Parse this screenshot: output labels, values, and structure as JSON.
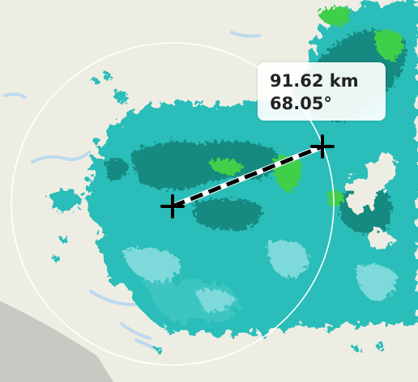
{
  "colors": {
    "land": "#eeede3",
    "land_lower_left": "#c7c7c1",
    "water": "#b9d8f0",
    "radar_teal": "#2cbdb9",
    "radar_cyan_light": "#6cd4d6",
    "radar_dark_teal": "#12847a",
    "radar_green": "#35d144",
    "range_ring": "#ffffff",
    "measure_line": "#000000"
  },
  "measurement": {
    "distance": "91.62 km",
    "bearing": "68.05°"
  },
  "icons": [
    "start-crosshair-icon",
    "end-crosshair-icon"
  ]
}
